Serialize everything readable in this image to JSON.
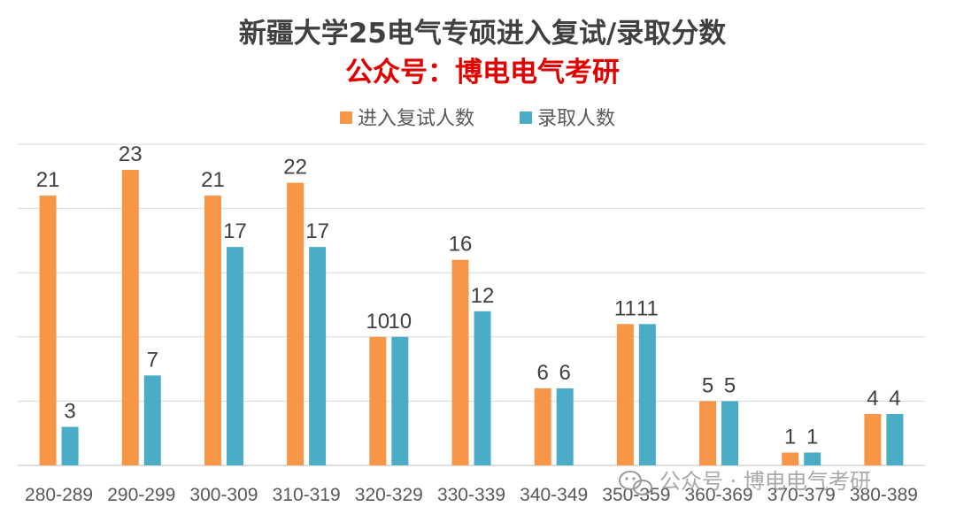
{
  "chart_data": {
    "type": "bar",
    "title": "新疆大学25电气专硕进入复试/录取分数",
    "subtitle": "公众号：博电电气考研",
    "categories": [
      "280-289",
      "290-299",
      "300-309",
      "310-319",
      "320-329",
      "330-339",
      "340-349",
      "350-359",
      "360-369",
      "370-379",
      "380-389"
    ],
    "series": [
      {
        "name": "进入复试人数",
        "values": [
          21,
          23,
          21,
          22,
          10,
          16,
          6,
          11,
          5,
          1,
          4
        ]
      },
      {
        "name": "录取人数",
        "values": [
          3,
          7,
          17,
          17,
          10,
          12,
          6,
          11,
          5,
          1,
          4
        ]
      }
    ],
    "xlabel": "",
    "ylabel": "",
    "ylim": [
      0,
      25
    ],
    "ytick_step": 5,
    "y_tick_labels_visible": false,
    "grid": true,
    "legend_position": "top-center",
    "data_labels": true
  },
  "colors": {
    "series_1": "#F79646",
    "series_2": "#4BACC6",
    "subtitle": "#E00000",
    "grid": "#D9D9D9",
    "axis": "#BFBFBF"
  },
  "watermark": {
    "text": "公众号 · 博电电气考研",
    "icon": "wechat-icon"
  }
}
